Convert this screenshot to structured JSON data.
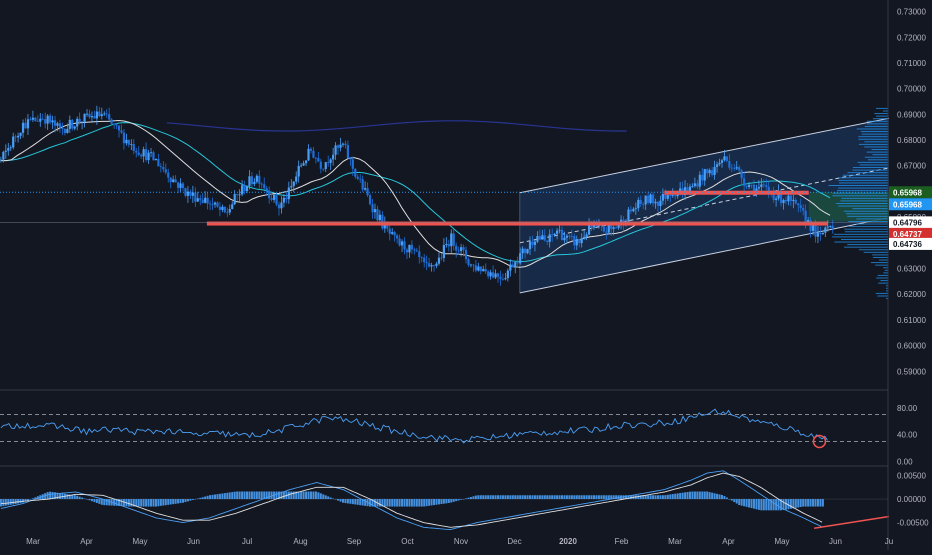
{
  "colors": {
    "background": "#131722",
    "up_candle": "#4a9ff5",
    "down_candle": "#1e6fd9",
    "grid_text": "#b2b5be",
    "resistance_line": "#ef5350",
    "channel_border": "#c9d1e3",
    "channel_fill": "#1c3a66",
    "ma_slow": "#26c6da",
    "ma_fast": "#e0e0e0",
    "ma_long": "#1a237e",
    "volume_profile": "#2196f3",
    "rsi_line": "#4a9ff5",
    "macd_hist": "#4a9ff5",
    "green_box": "#1b4d3e"
  },
  "x_axis_labels": [
    "Mar",
    "Apr",
    "May",
    "Jun",
    "Jul",
    "Aug",
    "Sep",
    "Oct",
    "Nov",
    "Dec",
    "2020",
    "Feb",
    "Mar",
    "Apr",
    "May",
    "Jun",
    "Ju"
  ],
  "price_axis_ticks": [
    "0.73000",
    "0.72000",
    "0.71000",
    "0.70000",
    "0.69000",
    "0.68000",
    "0.67000",
    "0.66000",
    "0.65000",
    "0.64000",
    "0.63000",
    "0.62000",
    "0.61000",
    "0.60000",
    "0.59000"
  ],
  "price_badges": [
    {
      "text": "0.65968",
      "value": 0.65968,
      "style": "green"
    },
    {
      "text": "0.65968",
      "value": 0.65968,
      "style": "blue"
    },
    {
      "text": "0.64796",
      "value": 0.64796,
      "style": "white"
    },
    {
      "text": "0.64737",
      "value": 0.64737,
      "style": "red"
    },
    {
      "text": "0.64736",
      "value": 0.64736,
      "style": "white"
    }
  ],
  "rsi_axis_ticks": [
    "80.00",
    "40.00",
    "0.00"
  ],
  "macd_axis_ticks": [
    "0.00500",
    "0.00000",
    "-0.00500"
  ],
  "chart_data": [
    {
      "type": "candlestick",
      "panel": "price",
      "ylim": [
        0.5835,
        0.7345
      ],
      "x_range_months": [
        0,
        16.2
      ],
      "close_path": [
        [
          -0.6,
          0.672
        ],
        [
          -0.2,
          0.686
        ],
        [
          0.2,
          0.689
        ],
        [
          0.5,
          0.684
        ],
        [
          0.9,
          0.688
        ],
        [
          1.3,
          0.69
        ],
        [
          1.6,
          0.683
        ],
        [
          1.9,
          0.677
        ],
        [
          2.3,
          0.672
        ],
        [
          2.6,
          0.665
        ],
        [
          2.9,
          0.659
        ],
        [
          3.2,
          0.657
        ],
        [
          3.4,
          0.654
        ],
        [
          3.6,
          0.651
        ],
        [
          3.8,
          0.658
        ],
        [
          4.0,
          0.663
        ],
        [
          4.2,
          0.666
        ],
        [
          4.4,
          0.66
        ],
        [
          4.6,
          0.654
        ],
        [
          4.8,
          0.66
        ],
        [
          5.0,
          0.67
        ],
        [
          5.2,
          0.676
        ],
        [
          5.4,
          0.67
        ],
        [
          5.6,
          0.675
        ],
        [
          5.8,
          0.678
        ],
        [
          6.0,
          0.668
        ],
        [
          6.2,
          0.66
        ],
        [
          6.4,
          0.652
        ],
        [
          6.6,
          0.645
        ],
        [
          6.8,
          0.64
        ],
        [
          7.0,
          0.638
        ],
        [
          7.2,
          0.634
        ],
        [
          7.4,
          0.629
        ],
        [
          7.6,
          0.634
        ],
        [
          7.8,
          0.642
        ],
        [
          8.0,
          0.637
        ],
        [
          8.2,
          0.631
        ],
        [
          8.4,
          0.63
        ],
        [
          8.6,
          0.628
        ],
        [
          8.8,
          0.627
        ],
        [
          9.0,
          0.633
        ],
        [
          9.2,
          0.637
        ],
        [
          9.4,
          0.643
        ],
        [
          9.6,
          0.64
        ],
        [
          9.8,
          0.645
        ],
        [
          10.0,
          0.641
        ],
        [
          10.2,
          0.64
        ],
        [
          10.4,
          0.646
        ],
        [
          10.6,
          0.645
        ],
        [
          10.8,
          0.645
        ],
        [
          11.0,
          0.648
        ],
        [
          11.2,
          0.653
        ],
        [
          11.5,
          0.657
        ],
        [
          11.7,
          0.656
        ],
        [
          11.9,
          0.66
        ],
        [
          12.1,
          0.66
        ],
        [
          12.3,
          0.661
        ],
        [
          12.5,
          0.666
        ],
        [
          12.7,
          0.668
        ],
        [
          12.9,
          0.673
        ],
        [
          13.1,
          0.67
        ],
        [
          13.3,
          0.664
        ],
        [
          13.5,
          0.661
        ],
        [
          13.7,
          0.661
        ],
        [
          13.9,
          0.658
        ],
        [
          14.1,
          0.657
        ],
        [
          14.3,
          0.653
        ],
        [
          14.5,
          0.648
        ],
        [
          14.7,
          0.641
        ],
        [
          14.85,
          0.648
        ],
        [
          15.0,
          0.647
        ]
      ],
      "annotations": [
        {
          "type": "horizontal_line",
          "price": 0.6475,
          "from_month": 3.25,
          "to_month": 14.85,
          "color": "red"
        },
        {
          "type": "horizontal_line",
          "price": 0.6595,
          "from_month": 11.8,
          "to_month": 14.5,
          "color": "red"
        },
        {
          "type": "parallel_channel",
          "start_month": 9.1,
          "end_month": 16.0,
          "lower": [
            0.6205,
            0.6498
          ],
          "upper": [
            0.6595,
            0.6885
          ]
        },
        {
          "type": "dotted_line",
          "price": 0.65968
        },
        {
          "type": "solid_line",
          "price": 0.64796
        }
      ]
    },
    {
      "type": "line",
      "panel": "rsi",
      "ylim": [
        -5,
        105
      ],
      "levels": [
        70,
        30
      ],
      "x": [
        -0.6,
        -0.2,
        0.5,
        1.0,
        1.5,
        2.0,
        2.5,
        3.0,
        3.5,
        4.0,
        4.5,
        5.0,
        5.5,
        6.0,
        6.5,
        7.0,
        7.5,
        8.0,
        8.5,
        9.0,
        9.5,
        10.0,
        10.5,
        11.0,
        11.5,
        12.0,
        12.5,
        12.8,
        13.0,
        13.3,
        13.6,
        14.0,
        14.3,
        14.6,
        14.9
      ],
      "values": [
        50,
        55,
        52,
        45,
        48,
        44,
        46,
        40,
        42,
        38,
        44,
        55,
        65,
        60,
        50,
        42,
        36,
        32,
        35,
        40,
        43,
        45,
        48,
        55,
        55,
        60,
        70,
        75,
        72,
        65,
        58,
        52,
        45,
        38,
        33
      ]
    },
    {
      "type": "line",
      "panel": "macd",
      "ylim": [
        -0.007,
        0.0068
      ],
      "x": [
        -0.6,
        -0.2,
        0.3,
        0.8,
        1.3,
        1.8,
        2.3,
        2.8,
        3.3,
        3.8,
        4.3,
        4.8,
        5.3,
        5.8,
        6.3,
        6.8,
        7.3,
        7.8,
        8.3,
        8.8,
        9.3,
        9.8,
        10.3,
        10.8,
        11.3,
        11.8,
        12.3,
        12.6,
        12.9,
        13.2,
        13.6,
        14.0,
        14.4,
        14.8
      ],
      "macd": [
        -0.002,
        -0.001,
        0.001,
        0.0015,
        0.0,
        -0.002,
        -0.004,
        -0.005,
        -0.004,
        -0.002,
        0.0,
        0.002,
        0.0035,
        0.002,
        -0.001,
        -0.004,
        -0.006,
        -0.0065,
        -0.005,
        -0.004,
        -0.003,
        -0.002,
        -0.001,
        0.0,
        0.001,
        0.002,
        0.004,
        0.0055,
        0.006,
        0.004,
        0.001,
        -0.002,
        -0.004,
        -0.0062
      ],
      "signal": [
        -0.001,
        -0.0005,
        0.0,
        0.001,
        0.0008,
        -0.001,
        -0.003,
        -0.0045,
        -0.0045,
        -0.003,
        -0.001,
        0.001,
        0.0025,
        0.0025,
        0.0,
        -0.003,
        -0.005,
        -0.006,
        -0.0055,
        -0.0045,
        -0.0035,
        -0.0025,
        -0.0015,
        -0.0005,
        0.0005,
        0.0015,
        0.003,
        0.0045,
        0.0055,
        0.0048,
        0.0025,
        -0.0005,
        -0.003,
        -0.0052
      ]
    }
  ]
}
